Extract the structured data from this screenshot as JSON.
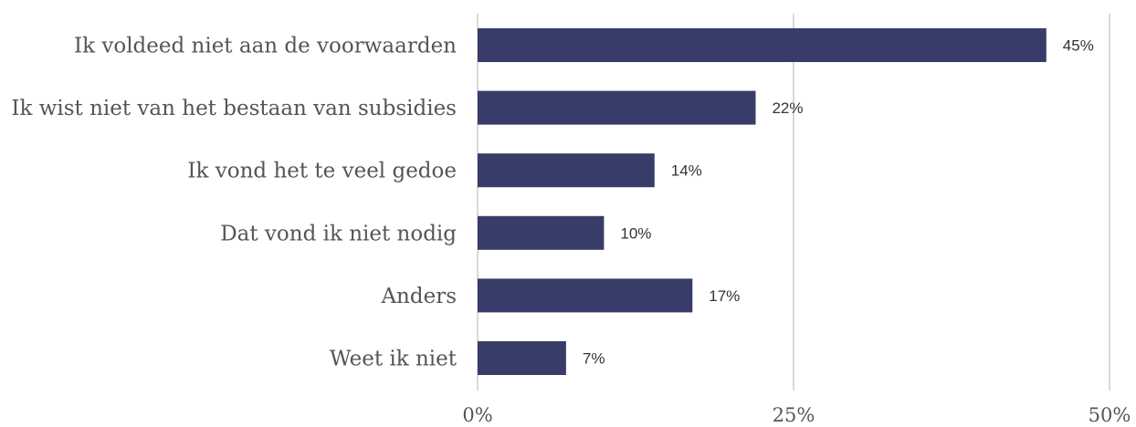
{
  "chart_data": {
    "type": "bar",
    "orientation": "horizontal",
    "categories": [
      "Ik voldeed niet aan de voorwaarden",
      "Ik wist niet van het bestaan van subsidies",
      "Ik vond het te veel gedoe",
      "Dat vond ik niet nodig",
      "Anders",
      "Weet ik niet"
    ],
    "values": [
      45,
      22,
      14,
      10,
      17,
      7
    ],
    "value_labels": [
      "45%",
      "22%",
      "14%",
      "10%",
      "17%",
      "7%"
    ],
    "x_ticks": [
      0,
      25,
      50
    ],
    "x_tick_labels": [
      "0%",
      "25%",
      "50%"
    ],
    "xlim": [
      0,
      50
    ],
    "grid": "vertical",
    "bar_color": "#383c68",
    "title": "",
    "xlabel": "",
    "ylabel": ""
  }
}
